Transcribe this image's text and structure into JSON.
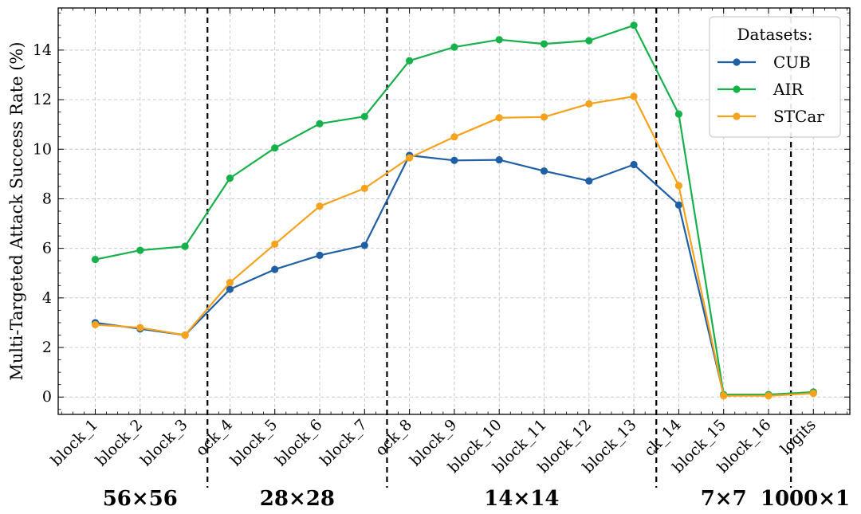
{
  "chart_data": {
    "type": "line",
    "ylabel": "Multi-Targeted Attack Success Rate (%)",
    "xlabel": "",
    "ylim": [
      -0.7,
      15.7
    ],
    "yticks": [
      0,
      2,
      4,
      6,
      8,
      10,
      12,
      14
    ],
    "grid": true,
    "categories": [
      "block_1",
      "block_2",
      "block_3",
      "block_4",
      "block_5",
      "block_6",
      "block_7",
      "block_8",
      "block_9",
      "block_10",
      "block_11",
      "block_12",
      "block_13",
      "block_14",
      "block_15",
      "block_16",
      "logits"
    ],
    "visible_tick_labels": [
      "block_1",
      "block_2",
      "block_3",
      "ock_4",
      "block_5",
      "block_6",
      "block_7",
      "ock_8",
      "block_9",
      "block_10",
      "block_11",
      "block_12",
      "block_13",
      "ck_14",
      "block_15",
      "block_16",
      "logits"
    ],
    "legend": {
      "title": "Datasets:",
      "position": "top-right"
    },
    "series": [
      {
        "name": "CUB",
        "color": "#1f5fa6",
        "values": [
          3.0,
          2.75,
          2.5,
          4.35,
          5.15,
          5.72,
          6.12,
          9.75,
          9.55,
          9.57,
          9.12,
          8.72,
          9.38,
          7.75,
          0.08,
          0.08,
          0.2
        ]
      },
      {
        "name": "AIR",
        "color": "#16b14b",
        "values": [
          5.55,
          5.92,
          6.08,
          8.83,
          10.05,
          11.03,
          11.32,
          13.57,
          14.12,
          14.42,
          14.25,
          14.38,
          15.0,
          11.42,
          0.1,
          0.1,
          0.2
        ]
      },
      {
        "name": "STCar",
        "color": "#f7a21c",
        "values": [
          2.92,
          2.8,
          2.5,
          4.62,
          6.17,
          7.7,
          8.42,
          9.65,
          10.5,
          11.27,
          11.3,
          11.83,
          12.13,
          8.53,
          0.05,
          0.05,
          0.15
        ]
      }
    ],
    "resolution_groups": [
      {
        "label": "56×56",
        "start": 0,
        "end": 2
      },
      {
        "label": "28×28",
        "start": 3,
        "end": 6
      },
      {
        "label": "14×14",
        "start": 7,
        "end": 12
      },
      {
        "label": "7×7",
        "start": 13,
        "end": 15
      },
      {
        "label": "1000×1",
        "start": 16,
        "end": 16
      }
    ],
    "dashed_separators_after_index": [
      2,
      6,
      12,
      15
    ]
  }
}
